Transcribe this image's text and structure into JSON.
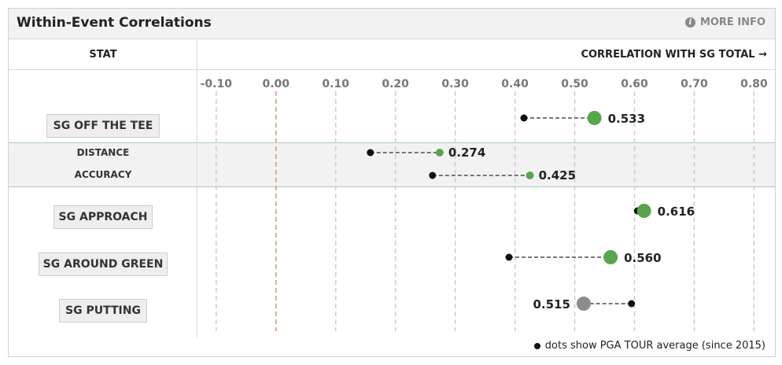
{
  "header": {
    "title": "Within-Event Correlations",
    "more_info": "MORE INFO"
  },
  "columns": {
    "stat": "STAT",
    "correlation": "CORRELATION WITH SG TOTAL →"
  },
  "footer": {
    "note": "dots show PGA TOUR average (since 2015)"
  },
  "colors": {
    "green": "#57a54c",
    "gray": "#8c8c8c",
    "black": "#111111",
    "zero_line": "#e8a296",
    "grid": "#cccccc"
  },
  "chart_data": {
    "type": "dot",
    "title": "Within-Event Correlations",
    "xlabel": "CORRELATION WITH SG TOTAL",
    "xlim": [
      -0.13,
      0.835
    ],
    "ticks": [
      -0.1,
      0.0,
      0.1,
      0.2,
      0.3,
      0.4,
      0.5,
      0.6,
      0.7,
      0.8
    ],
    "tick_labels": [
      "-0.10",
      "0.00",
      "0.10",
      "0.20",
      "0.30",
      "0.40",
      "0.50",
      "0.60",
      "0.70",
      "0.80"
    ],
    "rows": [
      {
        "label": "SG OFF THE TEE",
        "kind": "main",
        "value": 0.533,
        "value_label": "0.533",
        "tour_avg": 0.415,
        "color": "green"
      },
      {
        "label": "DISTANCE",
        "kind": "sub",
        "value": 0.274,
        "value_label": "0.274",
        "tour_avg": 0.158,
        "color": "green"
      },
      {
        "label": "ACCURACY",
        "kind": "sub",
        "value": 0.425,
        "value_label": "0.425",
        "tour_avg": 0.262,
        "color": "green"
      },
      {
        "label": "SG APPROACH",
        "kind": "main",
        "value": 0.616,
        "value_label": "0.616",
        "tour_avg": 0.605,
        "color": "green"
      },
      {
        "label": "SG AROUND GREEN",
        "kind": "main",
        "value": 0.56,
        "value_label": "0.560",
        "tour_avg": 0.39,
        "color": "green"
      },
      {
        "label": "SG PUTTING",
        "kind": "main",
        "value": 0.515,
        "value_label": "0.515",
        "tour_avg": 0.595,
        "color": "gray"
      }
    ]
  }
}
